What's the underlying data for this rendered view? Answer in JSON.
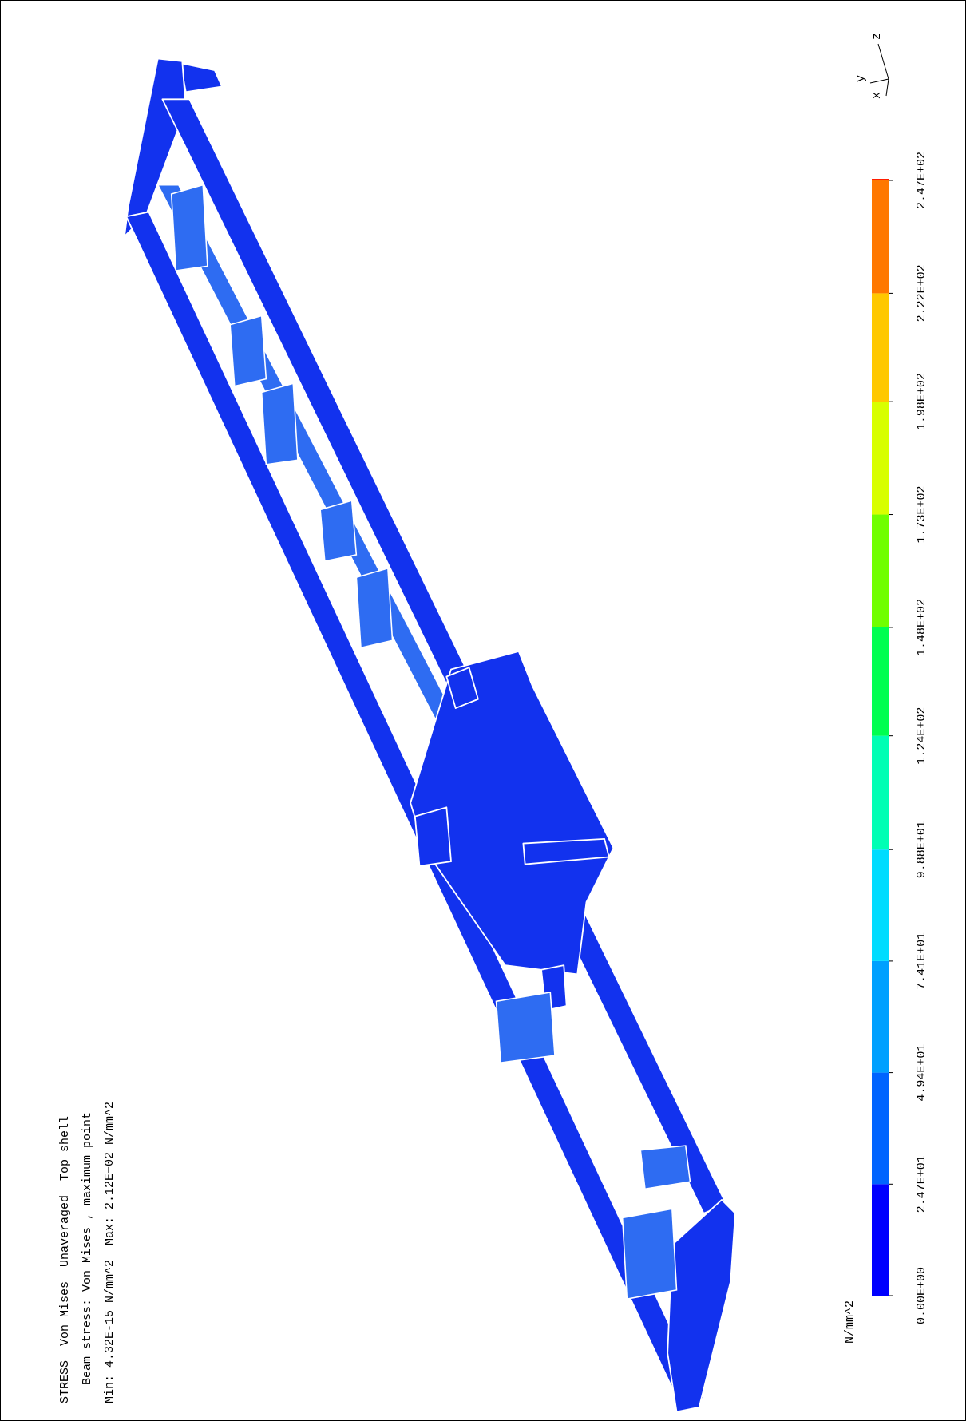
{
  "header": {
    "lines": [
      "STRESS  Von Mises  Unaveraged  Top shell",
      "Beam stress: Von Mises , maximum point",
      "Min: 4.32E-15 N/mm^2  Max: 2.12E+02 N/mm^2"
    ]
  },
  "triad": {
    "labels": [
      "y",
      "z",
      "x"
    ]
  },
  "colorbar": {
    "unit": "N/mm^2",
    "ticks": [
      {
        "value": 0,
        "label": "0.00E+00"
      },
      {
        "value": 24.7,
        "label": "2.47E+01"
      },
      {
        "value": 49.4,
        "label": "4.94E+01"
      },
      {
        "value": 74.1,
        "label": "7.41E+01"
      },
      {
        "value": 98.8,
        "label": "9.88E+01"
      },
      {
        "value": 124,
        "label": "1.24E+02"
      },
      {
        "value": 148,
        "label": "1.48E+02"
      },
      {
        "value": 173,
        "label": "1.73E+02"
      },
      {
        "value": 198,
        "label": "1.98E+02"
      },
      {
        "value": 222,
        "label": "2.22E+02"
      },
      {
        "value": 247,
        "label": "2.47E+02"
      }
    ],
    "colors": [
      "#0000ff",
      "#0064ff",
      "#00a0ff",
      "#00dcff",
      "#00ffb4",
      "#00ff50",
      "#70ff00",
      "#d8ff00",
      "#ffc800",
      "#ff7800",
      "#ff1e00"
    ]
  }
}
